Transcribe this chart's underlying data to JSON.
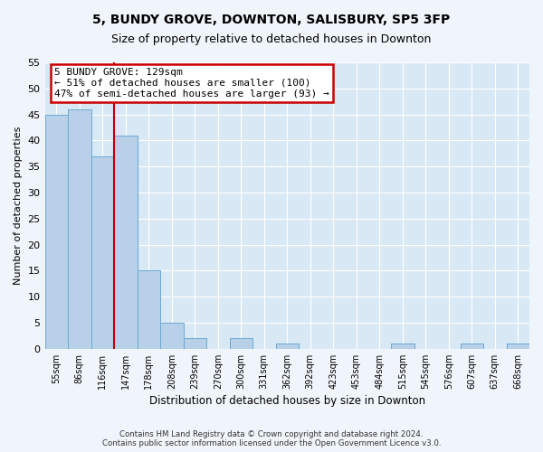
{
  "title": "5, BUNDY GROVE, DOWNTON, SALISBURY, SP5 3FP",
  "subtitle": "Size of property relative to detached houses in Downton",
  "xlabel": "Distribution of detached houses by size in Downton",
  "ylabel": "Number of detached properties",
  "bin_labels": [
    "55sqm",
    "86sqm",
    "116sqm",
    "147sqm",
    "178sqm",
    "208sqm",
    "239sqm",
    "270sqm",
    "300sqm",
    "331sqm",
    "362sqm",
    "392sqm",
    "423sqm",
    "453sqm",
    "484sqm",
    "515sqm",
    "545sqm",
    "576sqm",
    "607sqm",
    "637sqm",
    "668sqm"
  ],
  "counts": [
    45,
    46,
    37,
    41,
    15,
    5,
    2,
    0,
    2,
    0,
    1,
    0,
    0,
    0,
    0,
    1,
    0,
    0,
    1,
    0,
    1
  ],
  "bar_color": "#b8d0e8",
  "bar_edge_color": "#6aaad4",
  "property_line_color": "#c00000",
  "annotation_text": "5 BUNDY GROVE: 129sqm\n← 51% of detached houses are smaller (100)\n47% of semi-detached houses are larger (93) →",
  "annotation_box_color": "#ffffff",
  "annotation_box_edge_color": "#cc0000",
  "ylim": [
    0,
    55
  ],
  "footnote1": "Contains HM Land Registry data © Crown copyright and database right 2024.",
  "footnote2": "Contains public sector information licensed under the Open Government Licence v3.0.",
  "background_color": "#f0f4fb",
  "plot_background_color": "#d8e8f4",
  "title_fontsize": 10,
  "subtitle_fontsize": 9
}
